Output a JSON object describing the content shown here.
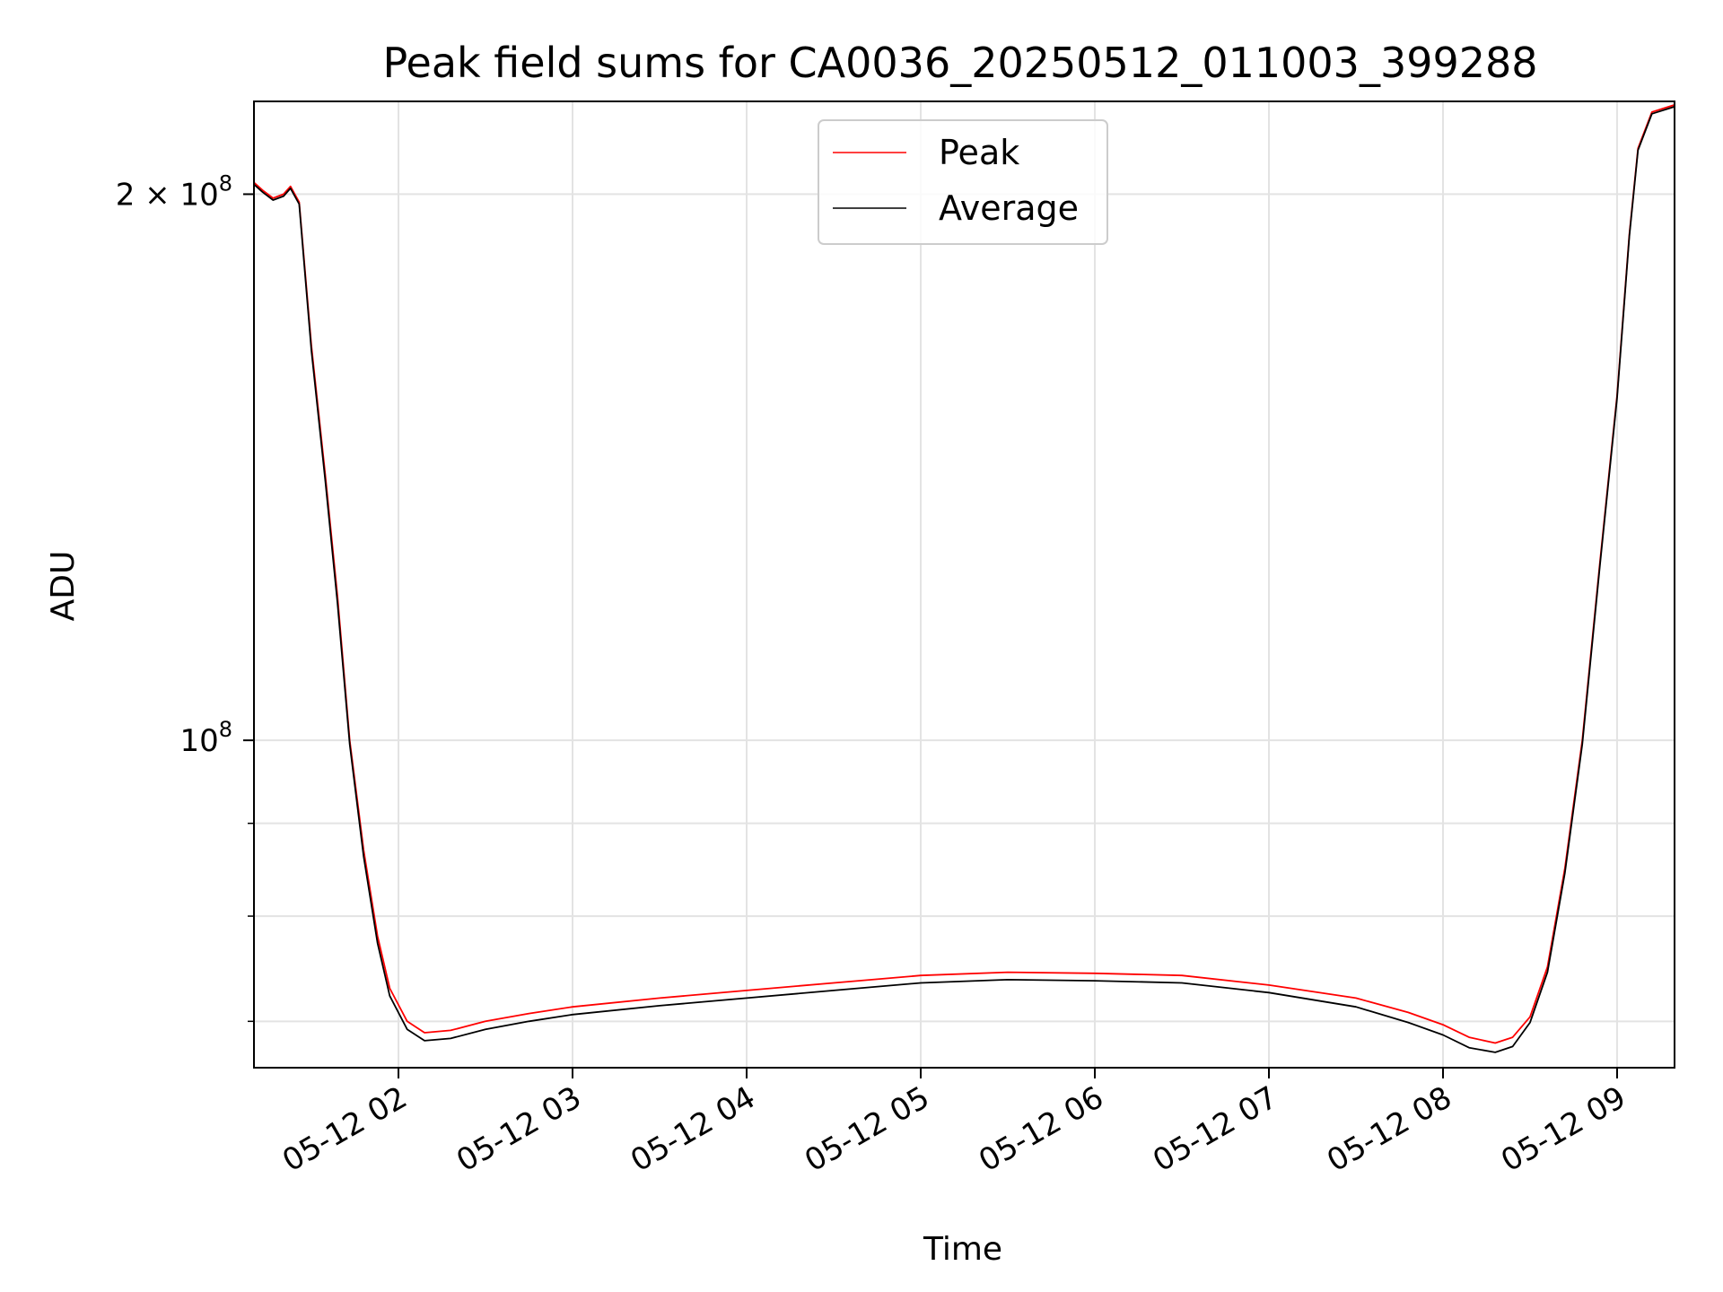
{
  "chart_data": {
    "type": "line",
    "title": "Peak field sums for CA0036_20250512_011003_399288",
    "xlabel": "Time",
    "ylabel": "ADU",
    "x_unit": "hour of 2025-05-12",
    "xlim": [
      1.17,
      9.33
    ],
    "ylim": [
      66000000,
      225000000
    ],
    "yscale": "log",
    "grid": true,
    "legend_position": "upper center",
    "x_ticks": [
      {
        "value": 2,
        "label": "05-12 02"
      },
      {
        "value": 3,
        "label": "05-12 03"
      },
      {
        "value": 4,
        "label": "05-12 04"
      },
      {
        "value": 5,
        "label": "05-12 05"
      },
      {
        "value": 6,
        "label": "05-12 06"
      },
      {
        "value": 7,
        "label": "05-12 07"
      },
      {
        "value": 8,
        "label": "05-12 08"
      },
      {
        "value": 9,
        "label": "05-12 09"
      }
    ],
    "y_major_ticks": [
      {
        "value": 100000000,
        "base": "10",
        "exp": "8"
      },
      {
        "value": 200000000,
        "base": "2 × 10",
        "exp": "8"
      }
    ],
    "y_minor_ticks": [
      70000000,
      80000000,
      90000000
    ],
    "series": [
      {
        "name": "Peak",
        "color": "#ff0000",
        "x": [
          1.17,
          1.22,
          1.28,
          1.34,
          1.38,
          1.43,
          1.5,
          1.58,
          1.65,
          1.72,
          1.8,
          1.88,
          1.95,
          2.05,
          2.15,
          2.3,
          2.5,
          2.75,
          3.0,
          3.5,
          4.0,
          4.5,
          5.0,
          5.5,
          6.0,
          6.5,
          7.0,
          7.5,
          7.8,
          8.0,
          8.15,
          8.3,
          8.4,
          8.5,
          8.6,
          8.7,
          8.8,
          8.9,
          9.0,
          9.07,
          9.12,
          9.2,
          9.33
        ],
        "y": [
          203000000,
          201000000,
          199000000,
          200000000,
          202000000,
          198000000,
          165000000,
          140000000,
          120000000,
          100000000,
          87000000,
          78000000,
          73000000,
          70000000,
          69000000,
          69200000,
          70000000,
          70700000,
          71300000,
          72100000,
          72800000,
          73500000,
          74200000,
          74500000,
          74400000,
          74200000,
          73300000,
          72100000,
          70800000,
          69700000,
          68600000,
          68100000,
          68600000,
          70400000,
          75000000,
          85000000,
          100000000,
          125000000,
          155000000,
          190000000,
          212000000,
          222000000,
          224000000
        ]
      },
      {
        "name": "Average",
        "color": "#000000",
        "x": [
          1.17,
          1.22,
          1.28,
          1.34,
          1.38,
          1.43,
          1.5,
          1.58,
          1.65,
          1.72,
          1.8,
          1.88,
          1.95,
          2.05,
          2.15,
          2.3,
          2.5,
          2.75,
          3.0,
          3.5,
          4.0,
          4.5,
          5.0,
          5.5,
          6.0,
          6.5,
          7.0,
          7.5,
          7.8,
          8.0,
          8.15,
          8.3,
          8.4,
          8.5,
          8.6,
          8.7,
          8.8,
          8.9,
          9.0,
          9.07,
          9.12,
          9.2,
          9.33
        ],
        "y": [
          202500000,
          200500000,
          198500000,
          199500000,
          201500000,
          197500000,
          164000000,
          139000000,
          119000000,
          99500000,
          86300000,
          77300000,
          72300000,
          69300000,
          68300000,
          68500000,
          69300000,
          70000000,
          70600000,
          71400000,
          72100000,
          72800000,
          73500000,
          73800000,
          73700000,
          73500000,
          72600000,
          71300000,
          69900000,
          68800000,
          67700000,
          67300000,
          67800000,
          69900000,
          74500000,
          84500000,
          99500000,
          124500000,
          154500000,
          189500000,
          211500000,
          221500000,
          223500000
        ]
      }
    ]
  }
}
